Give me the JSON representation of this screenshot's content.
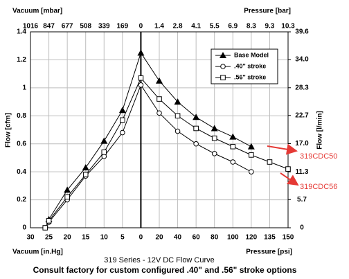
{
  "chart_data": {
    "type": "line",
    "title": "319 Series - 12V DC Flow Curve",
    "note": "Consult factory for custom configured .40\" and .56\" stroke options",
    "x_vacuum_label": "Vacuum [in.Hg]",
    "x_pressure_label": "Pressure [psi]",
    "top_vacuum_label": "Vacuum [mbar]",
    "top_pressure_label": "Pressure [bar]",
    "ylabel": "Flow [cfm]",
    "y2label": "Flow [l/min]",
    "vacuum_ticks": [
      30,
      25,
      20,
      15,
      10,
      5,
      0
    ],
    "pressure_ticks": [
      20,
      40,
      60,
      80,
      100,
      120,
      135,
      150
    ],
    "top_vacuum_ticks": [
      1016,
      847,
      677,
      508,
      339,
      169,
      0
    ],
    "top_pressure_ticks": [
      1.4,
      2.8,
      4.1,
      5.5,
      6.9,
      8.3,
      9.3,
      10.3
    ],
    "ylim": [
      0,
      1.4
    ],
    "yticks": [
      0,
      0.2,
      0.4,
      0.6,
      0.8,
      1,
      1.2,
      1.4
    ],
    "y2lim": [
      0,
      39.6
    ],
    "y2ticks": [
      0,
      5.7,
      11.3,
      {
        "value": 17,
        "label": "17.0"
      },
      22.7,
      28.3,
      {
        "value": 34,
        "label": "34.0"
      },
      39.6
    ],
    "grid": true,
    "legend": "upper right",
    "series": [
      {
        "name": "Base Model",
        "marker": "triangle",
        "color": "#000000",
        "vacuum": {
          "x": [
            25,
            20,
            15,
            10,
            5,
            0
          ],
          "values": [
            0.06,
            0.27,
            0.43,
            0.62,
            0.84,
            1.25
          ]
        },
        "pressure": {
          "x": [
            20,
            40,
            60,
            80,
            100,
            120
          ],
          "values": [
            1.05,
            0.9,
            0.79,
            0.71,
            0.65,
            0.58
          ]
        }
      },
      {
        "name": ".40\" stroke",
        "marker": "circle",
        "color": "#000000",
        "vacuum": {
          "x": [
            26,
            25,
            20,
            15,
            10,
            5,
            0
          ],
          "values": [
            0,
            0.04,
            0.2,
            0.37,
            0.51,
            0.68,
            1.02
          ]
        },
        "pressure": {
          "x": [
            20,
            40,
            60,
            80,
            100,
            120
          ],
          "values": [
            0.82,
            0.69,
            0.6,
            0.53,
            0.47,
            0.4
          ]
        }
      },
      {
        "name": ".56\" stroke",
        "marker": "square",
        "color": "#000000",
        "vacuum": {
          "x": [
            26,
            25,
            20,
            15,
            10,
            5,
            0
          ],
          "values": [
            0,
            0.05,
            0.22,
            0.38,
            0.54,
            0.77,
            1.07
          ]
        },
        "pressure": {
          "x": [
            20,
            40,
            60,
            80,
            100,
            120,
            135,
            150
          ],
          "values": [
            0.92,
            0.8,
            0.71,
            0.64,
            0.58,
            0.52,
            0.47,
            0.42
          ]
        }
      }
    ],
    "annotations": [
      {
        "text": "319CDC50",
        "color": "#e53935"
      },
      {
        "text": "319CDC56",
        "color": "#e53935"
      }
    ]
  }
}
